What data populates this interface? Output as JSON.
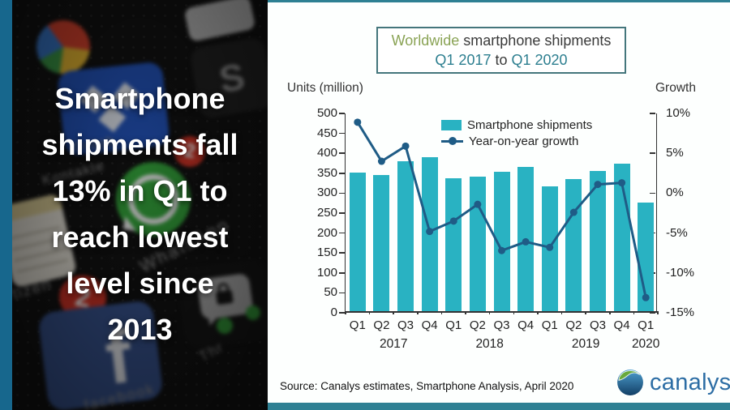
{
  "left_panel": {
    "headline": "Smartphone\nshipments fall\n13% in Q1 to\nreach lowest\nlevel since\n2013",
    "photo_labels": {
      "kontakte": "Kontakte",
      "drop": "Dropb",
      "whatsapp": "WhatsApp",
      "tizen": "tizen",
      "facebook": "facebook",
      "thr": "Thr",
      "f": "f",
      "s": "S"
    },
    "badges": {
      "badge1": "2",
      "badge2": "2"
    }
  },
  "header": {
    "title_green": "Worldwide",
    "title_rest": " smartphone shipments",
    "range_start": "Q1 2017",
    "range_mid": " to ",
    "range_end": "Q1 2020"
  },
  "chart_data": {
    "type": "bar",
    "title": "Worldwide smartphone shipments Q1 2017 to Q1 2020",
    "categories": [
      "Q1",
      "Q2",
      "Q3",
      "Q4",
      "Q1",
      "Q2",
      "Q3",
      "Q4",
      "Q1",
      "Q2",
      "Q3",
      "Q4",
      "Q1"
    ],
    "year_groups": [
      {
        "label": "2017",
        "slot_center": 2.0
      },
      {
        "label": "2018",
        "slot_center": 6.0
      },
      {
        "label": "2019",
        "slot_center": 10.0
      },
      {
        "label": "2020",
        "slot_center": 12.5
      }
    ],
    "series": [
      {
        "name": "Smartphone shipments",
        "type": "bar",
        "axis": "left",
        "color": "#29b2c2",
        "values": [
          347,
          341,
          376,
          386,
          334,
          337,
          349,
          362,
          314,
          331,
          352,
          369,
          272
        ]
      },
      {
        "name": "Year-on-year growth",
        "type": "line",
        "axis": "right",
        "color": "#1f5c86",
        "values": [
          8.9,
          4.0,
          5.9,
          -4.8,
          -3.5,
          -1.4,
          -7.2,
          -6.1,
          -6.8,
          -2.4,
          1.1,
          1.3,
          -13.1
        ]
      }
    ],
    "left_axis": {
      "label": "Units (million)",
      "min": 0,
      "max": 500,
      "tick_values": [
        500,
        450,
        400,
        350,
        300,
        250,
        200,
        150,
        100,
        50,
        0
      ],
      "tick_labels": [
        "500",
        "450",
        "400",
        "350",
        "300",
        "250",
        "200",
        "150",
        "100",
        "50",
        "0"
      ]
    },
    "right_axis": {
      "label": "Growth",
      "min": -15,
      "max": 10,
      "tick_values": [
        10,
        5,
        0,
        -5,
        -10,
        -15
      ],
      "tick_labels": [
        "10%",
        "5%",
        "0%",
        "-5%",
        "-10%",
        "-15%"
      ]
    },
    "grid": false,
    "legend_position": "top-center"
  },
  "footer": {
    "source": "Source: Canalys estimates, Smartphone Analysis, April 2020",
    "logo_text": "canalys"
  },
  "colors": {
    "bar_teal": "#29b2c2",
    "line_blue": "#1f5c86",
    "left_strip_blue": "#17678d",
    "panel_border_teal": "#2e8093",
    "title_box_border": "#44767c",
    "title_green": "#8aa355",
    "title_teal": "#2c7e8f",
    "logo_blue": "#2c6da4"
  }
}
